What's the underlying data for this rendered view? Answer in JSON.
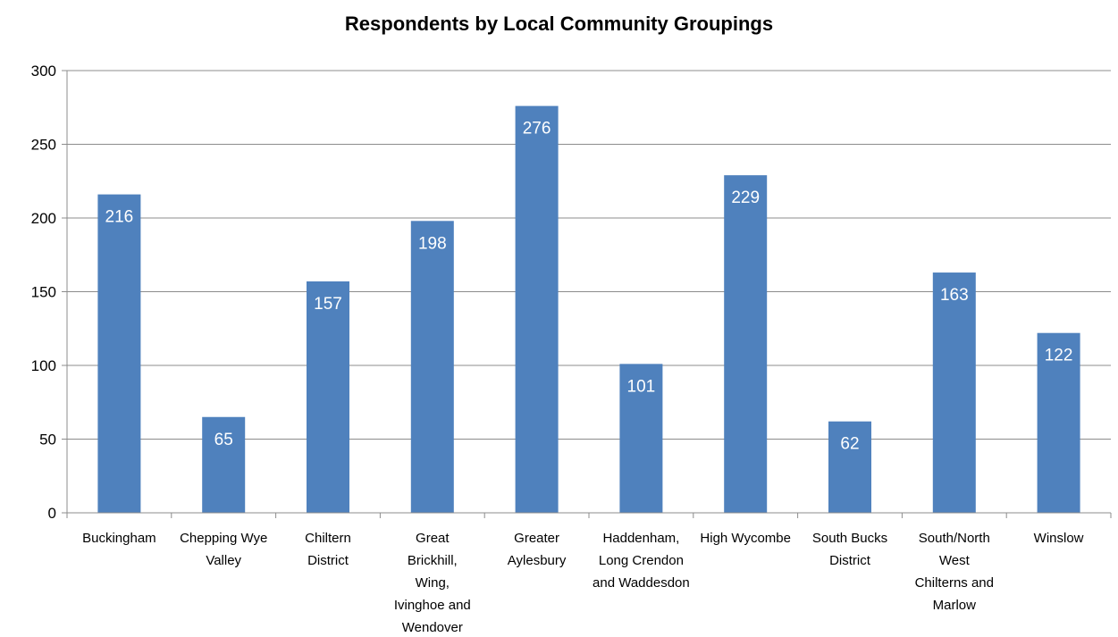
{
  "chart_data": {
    "type": "bar",
    "title": "Respondents by Local Community Groupings",
    "xlabel": "",
    "ylabel": "",
    "categories": [
      "Buckingham",
      "Chepping Wye Valley",
      "Chiltern District",
      "Great Brickhill, Wing, Ivinghoe and Wendover",
      "Greater Aylesbury",
      "Haddenham, Long Crendon and Waddesdon",
      "High Wycombe",
      "South Bucks District",
      "South/North West Chilterns and Marlow",
      "Winslow"
    ],
    "values": [
      216,
      65,
      157,
      198,
      276,
      101,
      229,
      62,
      163,
      122
    ],
    "ylim": [
      0,
      300
    ],
    "yticks": [
      0,
      50,
      100,
      150,
      200,
      250,
      300
    ],
    "grid": true,
    "legend": "none",
    "bar_color": "#4F81BD",
    "data_label_color": "#FFFFFF"
  }
}
